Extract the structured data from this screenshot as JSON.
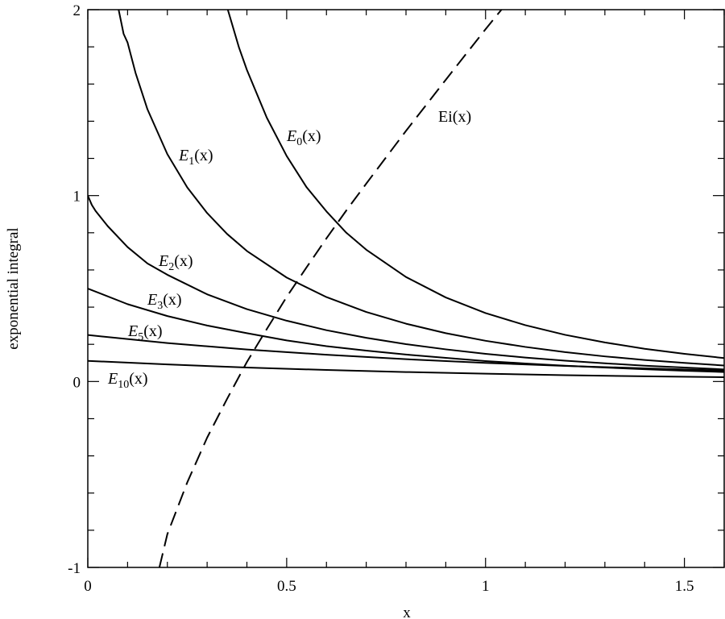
{
  "chart_data": {
    "type": "line",
    "title": "",
    "xlabel": "x",
    "ylabel": "exponential integral",
    "xlim": [
      0,
      1.6
    ],
    "ylim": [
      -1,
      2
    ],
    "x_ticks": [
      "0",
      "0.5",
      "1",
      "1.5"
    ],
    "y_ticks": [
      "-1",
      "0",
      "1",
      "2"
    ],
    "grid": false,
    "series": [
      {
        "name": "E0(x)",
        "label_main": "E",
        "label_sub": "0",
        "label_tail": "(x)",
        "dash": "none",
        "x": [
          0.352,
          0.38,
          0.4,
          0.45,
          0.5,
          0.55,
          0.6,
          0.65,
          0.7,
          0.8,
          0.9,
          1.0,
          1.1,
          1.2,
          1.3,
          1.4,
          1.5,
          1.6
        ],
        "y": [
          2.0,
          1.797,
          1.676,
          1.419,
          1.213,
          1.045,
          0.915,
          0.8,
          0.709,
          0.562,
          0.452,
          0.368,
          0.303,
          0.251,
          0.21,
          0.176,
          0.149,
          0.126
        ]
      },
      {
        "name": "E1(x)",
        "label_main": "E",
        "label_sub": "1",
        "label_tail": "(x)",
        "dash": "none",
        "x": [
          0.0775,
          0.09,
          0.1,
          0.12,
          0.15,
          0.2,
          0.25,
          0.3,
          0.35,
          0.4,
          0.5,
          0.6,
          0.7,
          0.8,
          0.9,
          1.0,
          1.1,
          1.2,
          1.3,
          1.4,
          1.5,
          1.6
        ],
        "y": [
          2.0,
          1.87,
          1.823,
          1.66,
          1.464,
          1.223,
          1.044,
          0.906,
          0.794,
          0.702,
          0.559,
          0.454,
          0.374,
          0.311,
          0.26,
          0.219,
          0.186,
          0.158,
          0.135,
          0.116,
          0.1,
          0.086
        ]
      },
      {
        "name": "E2(x)",
        "label_main": "E",
        "label_sub": "2",
        "label_tail": "(x)",
        "dash": "none",
        "x": [
          0.0,
          0.01,
          0.02,
          0.05,
          0.1,
          0.15,
          0.2,
          0.3,
          0.4,
          0.5,
          0.6,
          0.7,
          0.8,
          0.9,
          1.0,
          1.1,
          1.2,
          1.3,
          1.4,
          1.5,
          1.6
        ],
        "y": [
          1.0,
          0.95,
          0.916,
          0.836,
          0.723,
          0.635,
          0.574,
          0.469,
          0.389,
          0.327,
          0.276,
          0.235,
          0.201,
          0.173,
          0.149,
          0.129,
          0.112,
          0.098,
          0.085,
          0.075,
          0.065
        ]
      },
      {
        "name": "E3(x)",
        "label_main": "E",
        "label_sub": "3",
        "label_tail": "(x)",
        "dash": "none",
        "x": [
          0.0,
          0.1,
          0.2,
          0.3,
          0.4,
          0.5,
          0.6,
          0.7,
          0.8,
          0.9,
          1.0,
          1.1,
          1.2,
          1.3,
          1.4,
          1.5,
          1.6
        ],
        "y": [
          0.5,
          0.416,
          0.352,
          0.301,
          0.26,
          0.221,
          0.19,
          0.166,
          0.145,
          0.127,
          0.11,
          0.097,
          0.085,
          0.075,
          0.066,
          0.058,
          0.051
        ]
      },
      {
        "name": "E5(x)",
        "label_main": "E",
        "label_sub": "5",
        "label_tail": "(x)",
        "dash": "none",
        "x": [
          0.0,
          0.2,
          0.4,
          0.6,
          0.8,
          1.0,
          1.2,
          1.4,
          1.6
        ],
        "y": [
          0.25,
          0.207,
          0.172,
          0.144,
          0.12,
          0.1,
          0.084,
          0.071,
          0.059
        ]
      },
      {
        "name": "E10(x)",
        "label_main": "E",
        "label_sub": "10",
        "label_tail": "(x)",
        "dash": "none",
        "x": [
          0.0,
          0.2,
          0.4,
          0.6,
          0.8,
          1.0,
          1.2,
          1.4,
          1.6
        ],
        "y": [
          0.111,
          0.092,
          0.075,
          0.062,
          0.051,
          0.042,
          0.034,
          0.028,
          0.023
        ]
      },
      {
        "name": "Ei(x)",
        "label_main": "Ei",
        "label_sub": "",
        "label_tail": "(x)",
        "dash": "long",
        "x": [
          0.18,
          0.2,
          0.25,
          0.3,
          0.35,
          0.4,
          0.45,
          0.5,
          0.55,
          0.6,
          0.65,
          0.7,
          0.8,
          0.9,
          1.0,
          1.04
        ],
        "y": [
          -1.0,
          -0.821,
          -0.543,
          -0.302,
          -0.094,
          0.105,
          0.282,
          0.455,
          0.614,
          0.77,
          0.92,
          1.064,
          1.348,
          1.623,
          1.895,
          2.0
        ]
      }
    ]
  }
}
